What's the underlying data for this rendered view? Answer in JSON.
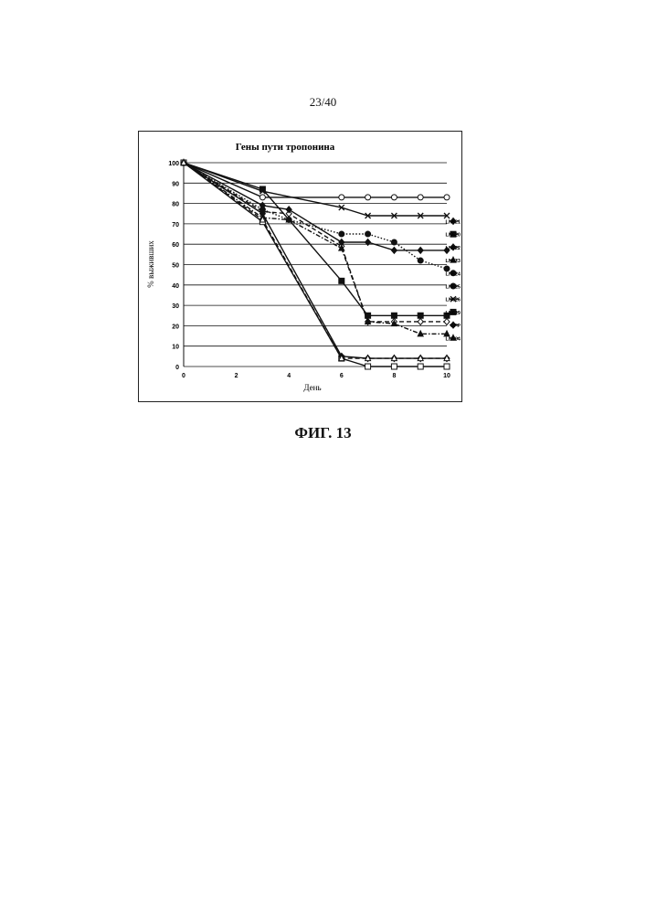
{
  "page": {
    "page_number": "23/40",
    "caption": "ФИГ. 13"
  },
  "chart_data": {
    "type": "line",
    "title": "Гены пути тропонина",
    "xlabel": "День",
    "ylabel": "% выживших",
    "xlim": [
      0,
      10
    ],
    "ylim": [
      0,
      100
    ],
    "x_ticks": [
      0,
      2,
      4,
      6,
      8,
      10
    ],
    "y_ticks": [
      0,
      10,
      20,
      30,
      40,
      50,
      60,
      70,
      80,
      90,
      100
    ],
    "grid": "horizontal",
    "legend_position": "right",
    "series": [
      {
        "name": "LN621",
        "marker": "diamond-open",
        "dash": "dash",
        "x": [
          0,
          3,
          4,
          6,
          7,
          8,
          9,
          10
        ],
        "y": [
          100,
          76,
          75,
          59,
          22,
          22,
          22,
          22
        ]
      },
      {
        "name": "LN620",
        "marker": "square-filled",
        "dash": "solid",
        "x": [
          0,
          3,
          6,
          7,
          8,
          9,
          10
        ],
        "y": [
          100,
          87,
          42,
          25,
          25,
          25,
          25
        ]
      },
      {
        "name": "LN622",
        "marker": "diamond-filled",
        "dash": "solid",
        "x": [
          0,
          3,
          4,
          6,
          7,
          8,
          9,
          10
        ],
        "y": [
          100,
          79,
          77,
          61,
          61,
          57,
          57,
          57
        ]
      },
      {
        "name": "LN623",
        "marker": "triangle-filled",
        "dash": "dash-dot",
        "x": [
          0,
          3,
          4,
          6,
          7,
          8,
          9,
          10
        ],
        "y": [
          100,
          73,
          72,
          58,
          22,
          21,
          16,
          16
        ]
      },
      {
        "name": "LN624",
        "marker": "circle-filled",
        "dash": "dot",
        "x": [
          0,
          3,
          4,
          6,
          7,
          8,
          9,
          10
        ],
        "y": [
          100,
          77,
          72,
          65,
          65,
          61,
          52,
          48
        ]
      },
      {
        "name": "LN625",
        "marker": "circle-open",
        "dash": "solid",
        "x": [
          0,
          3,
          6,
          7,
          8,
          9,
          10
        ],
        "y": [
          100,
          83,
          83,
          83,
          83,
          83,
          83
        ]
      },
      {
        "name": "LN626",
        "marker": "x",
        "dash": "solid",
        "x": [
          0,
          3,
          6,
          7,
          8,
          9,
          10
        ],
        "y": [
          100,
          86,
          78,
          74,
          74,
          74,
          74
        ]
      },
      {
        "name": "LN619",
        "marker": "square-open",
        "dash": "solid",
        "x": [
          0,
          3,
          6,
          7,
          8,
          9,
          10
        ],
        "y": [
          100,
          71,
          4,
          0,
          0,
          0,
          0
        ]
      },
      {
        "name": "GFP",
        "marker": "diamond-filled",
        "dash": "solid",
        "x": [
          0,
          3,
          6,
          7,
          8,
          9,
          10
        ],
        "y": [
          100,
          75,
          5,
          4,
          4,
          4,
          4
        ]
      },
      {
        "name": "LN594",
        "marker": "triangle-open",
        "dash": "dash",
        "x": [
          0,
          3,
          6,
          7,
          8,
          9,
          10
        ],
        "y": [
          100,
          72,
          4,
          4,
          4,
          4,
          4
        ]
      }
    ]
  }
}
